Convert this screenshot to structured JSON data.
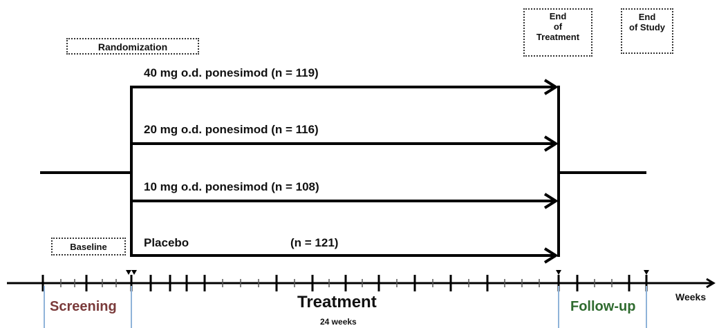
{
  "boxes": {
    "randomization": "Randomization",
    "baseline": "Baseline",
    "end_of_treatment": [
      "End",
      "of",
      "Treatment"
    ],
    "end_of_study": [
      "End",
      "of Study"
    ]
  },
  "arms": [
    {
      "dose": "40 mg o.d. ponesimod",
      "n": "(n = 119)"
    },
    {
      "dose": "20 mg o.d. ponesimod",
      "n": "(n = 116)"
    },
    {
      "dose": "10 mg o.d. ponesimod",
      "n": "(n = 108)"
    },
    {
      "dose": "Placebo",
      "n": "(n = 121)"
    }
  ],
  "phases": {
    "screening": "Screening",
    "treatment": "Treatment",
    "treatment_duration": "24 weeks",
    "followup": "Follow-up"
  },
  "axis_label": "Weeks",
  "colors": {
    "screening": "#7a3a3a",
    "followup": "#2f6b2f",
    "phase_divider": "#8fb3d9",
    "line": "#000000"
  }
}
